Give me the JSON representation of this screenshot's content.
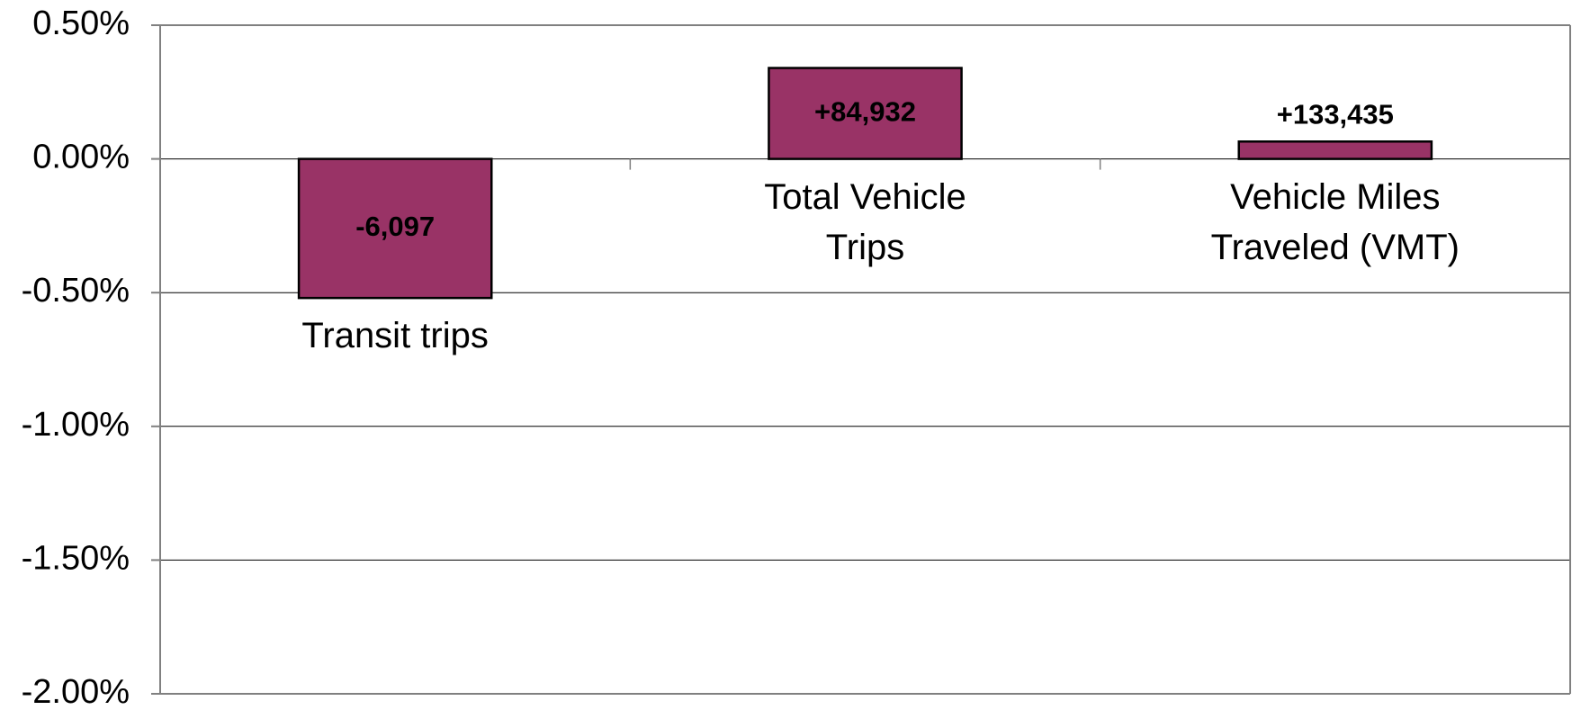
{
  "chart_data": {
    "type": "bar",
    "categories": [
      "Transit trips",
      "Total Vehicle\nTrips",
      "Vehicle Miles\nTraveled (VMT)"
    ],
    "values": [
      -0.52,
      0.34,
      0.065
    ],
    "annotations": [
      "-6,097",
      "+84,932",
      "+133,435"
    ],
    "color": "#993366",
    "ylim": [
      -2,
      0.5
    ],
    "yticks": [
      {
        "value": 0.5,
        "label": "0.50%"
      },
      {
        "value": 0,
        "label": "0.00%"
      },
      {
        "value": -0.5,
        "label": "-0.50%"
      },
      {
        "value": -1,
        "label": "-1.00%"
      },
      {
        "value": -1.5,
        "label": "-1.50%"
      },
      {
        "value": -2,
        "label": "-2.00%"
      }
    ],
    "grid": true
  }
}
